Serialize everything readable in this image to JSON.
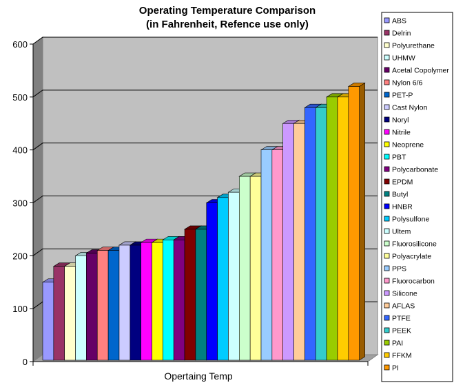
{
  "chart_data": {
    "type": "bar",
    "title": "Operating Temperature Comparison",
    "subtitle": "(in Fahrenheit, Refence use only)",
    "xlabel": "Opertaing Temp",
    "ylabel": "",
    "ylim": [
      0,
      600
    ],
    "yticks": [
      "0",
      "100",
      "200",
      "300",
      "400",
      "500",
      "600"
    ],
    "grid": true,
    "legend_position": "right",
    "three_d": true,
    "series": [
      {
        "name": "ABS",
        "value": 150,
        "color": "#9999FF"
      },
      {
        "name": "Delrin",
        "value": 180,
        "color": "#993366"
      },
      {
        "name": "Polyurethane",
        "value": 180,
        "color": "#FFFFCC"
      },
      {
        "name": "UHMW",
        "value": 200,
        "color": "#CCFFFF"
      },
      {
        "name": "Acetal Copolymer",
        "value": 205,
        "color": "#660066"
      },
      {
        "name": "Nylon 6/6",
        "value": 210,
        "color": "#FF8080"
      },
      {
        "name": "PET-P",
        "value": 210,
        "color": "#0066CC"
      },
      {
        "name": "Cast Nylon",
        "value": 220,
        "color": "#CCCCFF"
      },
      {
        "name": "Noryl",
        "value": 220,
        "color": "#000080"
      },
      {
        "name": "Nitrile",
        "value": 225,
        "color": "#FF00FF"
      },
      {
        "name": "Neoprene",
        "value": 225,
        "color": "#FFFF00"
      },
      {
        "name": "PBT",
        "value": 230,
        "color": "#00FFFF"
      },
      {
        "name": "Polycarbonate",
        "value": 230,
        "color": "#800080"
      },
      {
        "name": "EPDM",
        "value": 250,
        "color": "#800000"
      },
      {
        "name": "Butyl",
        "value": 250,
        "color": "#008080"
      },
      {
        "name": "HNBR",
        "value": 300,
        "color": "#0000FF"
      },
      {
        "name": "Polysulfone",
        "value": 310,
        "color": "#00CCFF"
      },
      {
        "name": "Ultem",
        "value": 320,
        "color": "#CCFFFF"
      },
      {
        "name": "Fluorosilicone",
        "value": 350,
        "color": "#CCFFCC"
      },
      {
        "name": "Polyacrylate",
        "value": 350,
        "color": "#FFFF99"
      },
      {
        "name": "PPS",
        "value": 400,
        "color": "#99CCFF"
      },
      {
        "name": "Fluorocarbon",
        "value": 400,
        "color": "#FF99CC"
      },
      {
        "name": "Silicone",
        "value": 450,
        "color": "#CC99FF"
      },
      {
        "name": "AFLAS",
        "value": 450,
        "color": "#FFCC99"
      },
      {
        "name": "PTFE",
        "value": 480,
        "color": "#3366FF"
      },
      {
        "name": "PEEK",
        "value": 480,
        "color": "#33CCCC"
      },
      {
        "name": "PAI",
        "value": 500,
        "color": "#99CC00"
      },
      {
        "name": "FFKM",
        "value": 500,
        "color": "#FFCC00"
      },
      {
        "name": "PI",
        "value": 520,
        "color": "#FF9900"
      }
    ]
  }
}
